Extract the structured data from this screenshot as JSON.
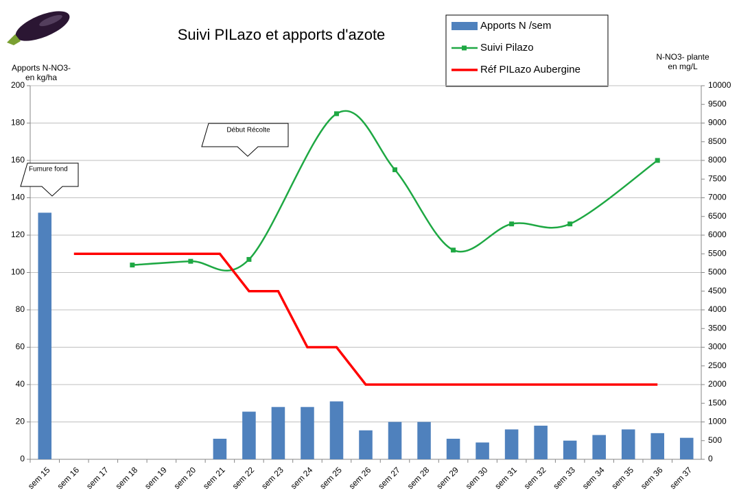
{
  "chart_data": {
    "type": "bar_line",
    "title": "Suivi PILazo et apports d'azote",
    "y_label": [
      "Apports N-NO3-",
      "en kg/ha"
    ],
    "y2_label": [
      "N-NO3- plante",
      "en mg/L"
    ],
    "categories": [
      "sem 15",
      "sem 16",
      "sem 17",
      "sem 18",
      "sem 19",
      "sem 20",
      "sem 21",
      "sem 22",
      "sem 23",
      "sem 24",
      "sem 25",
      "sem 26",
      "sem 27",
      "sem 28",
      "sem 29",
      "sem 30",
      "sem 31",
      "sem 32",
      "sem 33",
      "sem 34",
      "sem 35",
      "sem 36",
      "sem 37"
    ],
    "series": [
      {
        "name": "Apports N /sem",
        "type": "bar",
        "color": "#4f81bd",
        "values": [
          132,
          null,
          null,
          null,
          null,
          null,
          11,
          25.5,
          28,
          28,
          31,
          15.5,
          20,
          20,
          11,
          9,
          16,
          18,
          10,
          13,
          16,
          14,
          11.5
        ]
      },
      {
        "name": "Suivi Pilazo",
        "type": "smooth",
        "axis": "y2",
        "color": "#1ea843",
        "x": [
          "sem 18",
          "sem 20",
          "sem 22",
          "sem 25",
          "sem 27",
          "sem 29",
          "sem 31",
          "sem 33",
          "sem 36"
        ],
        "values": [
          5200,
          5300,
          5350,
          9250,
          7750,
          5600,
          6300,
          6300,
          8000
        ]
      },
      {
        "name": "Réf PILazo Aubergine",
        "type": "line",
        "axis": "y2",
        "color": "#ff0000",
        "values": [
          null,
          5500,
          5500,
          5500,
          5500,
          5500,
          5500,
          4500,
          4500,
          3000,
          3000,
          2000,
          2000,
          2000,
          2000,
          2000,
          2000,
          2000,
          2000,
          2000,
          2000,
          2000,
          null
        ]
      }
    ],
    "ylim": [
      0,
      200
    ],
    "yticks": [
      0,
      20,
      40,
      60,
      80,
      100,
      120,
      140,
      160,
      180,
      200
    ],
    "y2lim": [
      0,
      10000
    ],
    "y2ticks": [
      0,
      500,
      1000,
      1500,
      2000,
      2500,
      3000,
      3500,
      4000,
      4500,
      5000,
      5500,
      6000,
      6500,
      7000,
      7500,
      8000,
      8500,
      9000,
      9500,
      10000
    ],
    "grid": true,
    "annotations": [
      {
        "text": "Fumure fond",
        "category": "sem 15"
      },
      {
        "text": "Début Récolte",
        "category": "sem 22"
      }
    ]
  }
}
